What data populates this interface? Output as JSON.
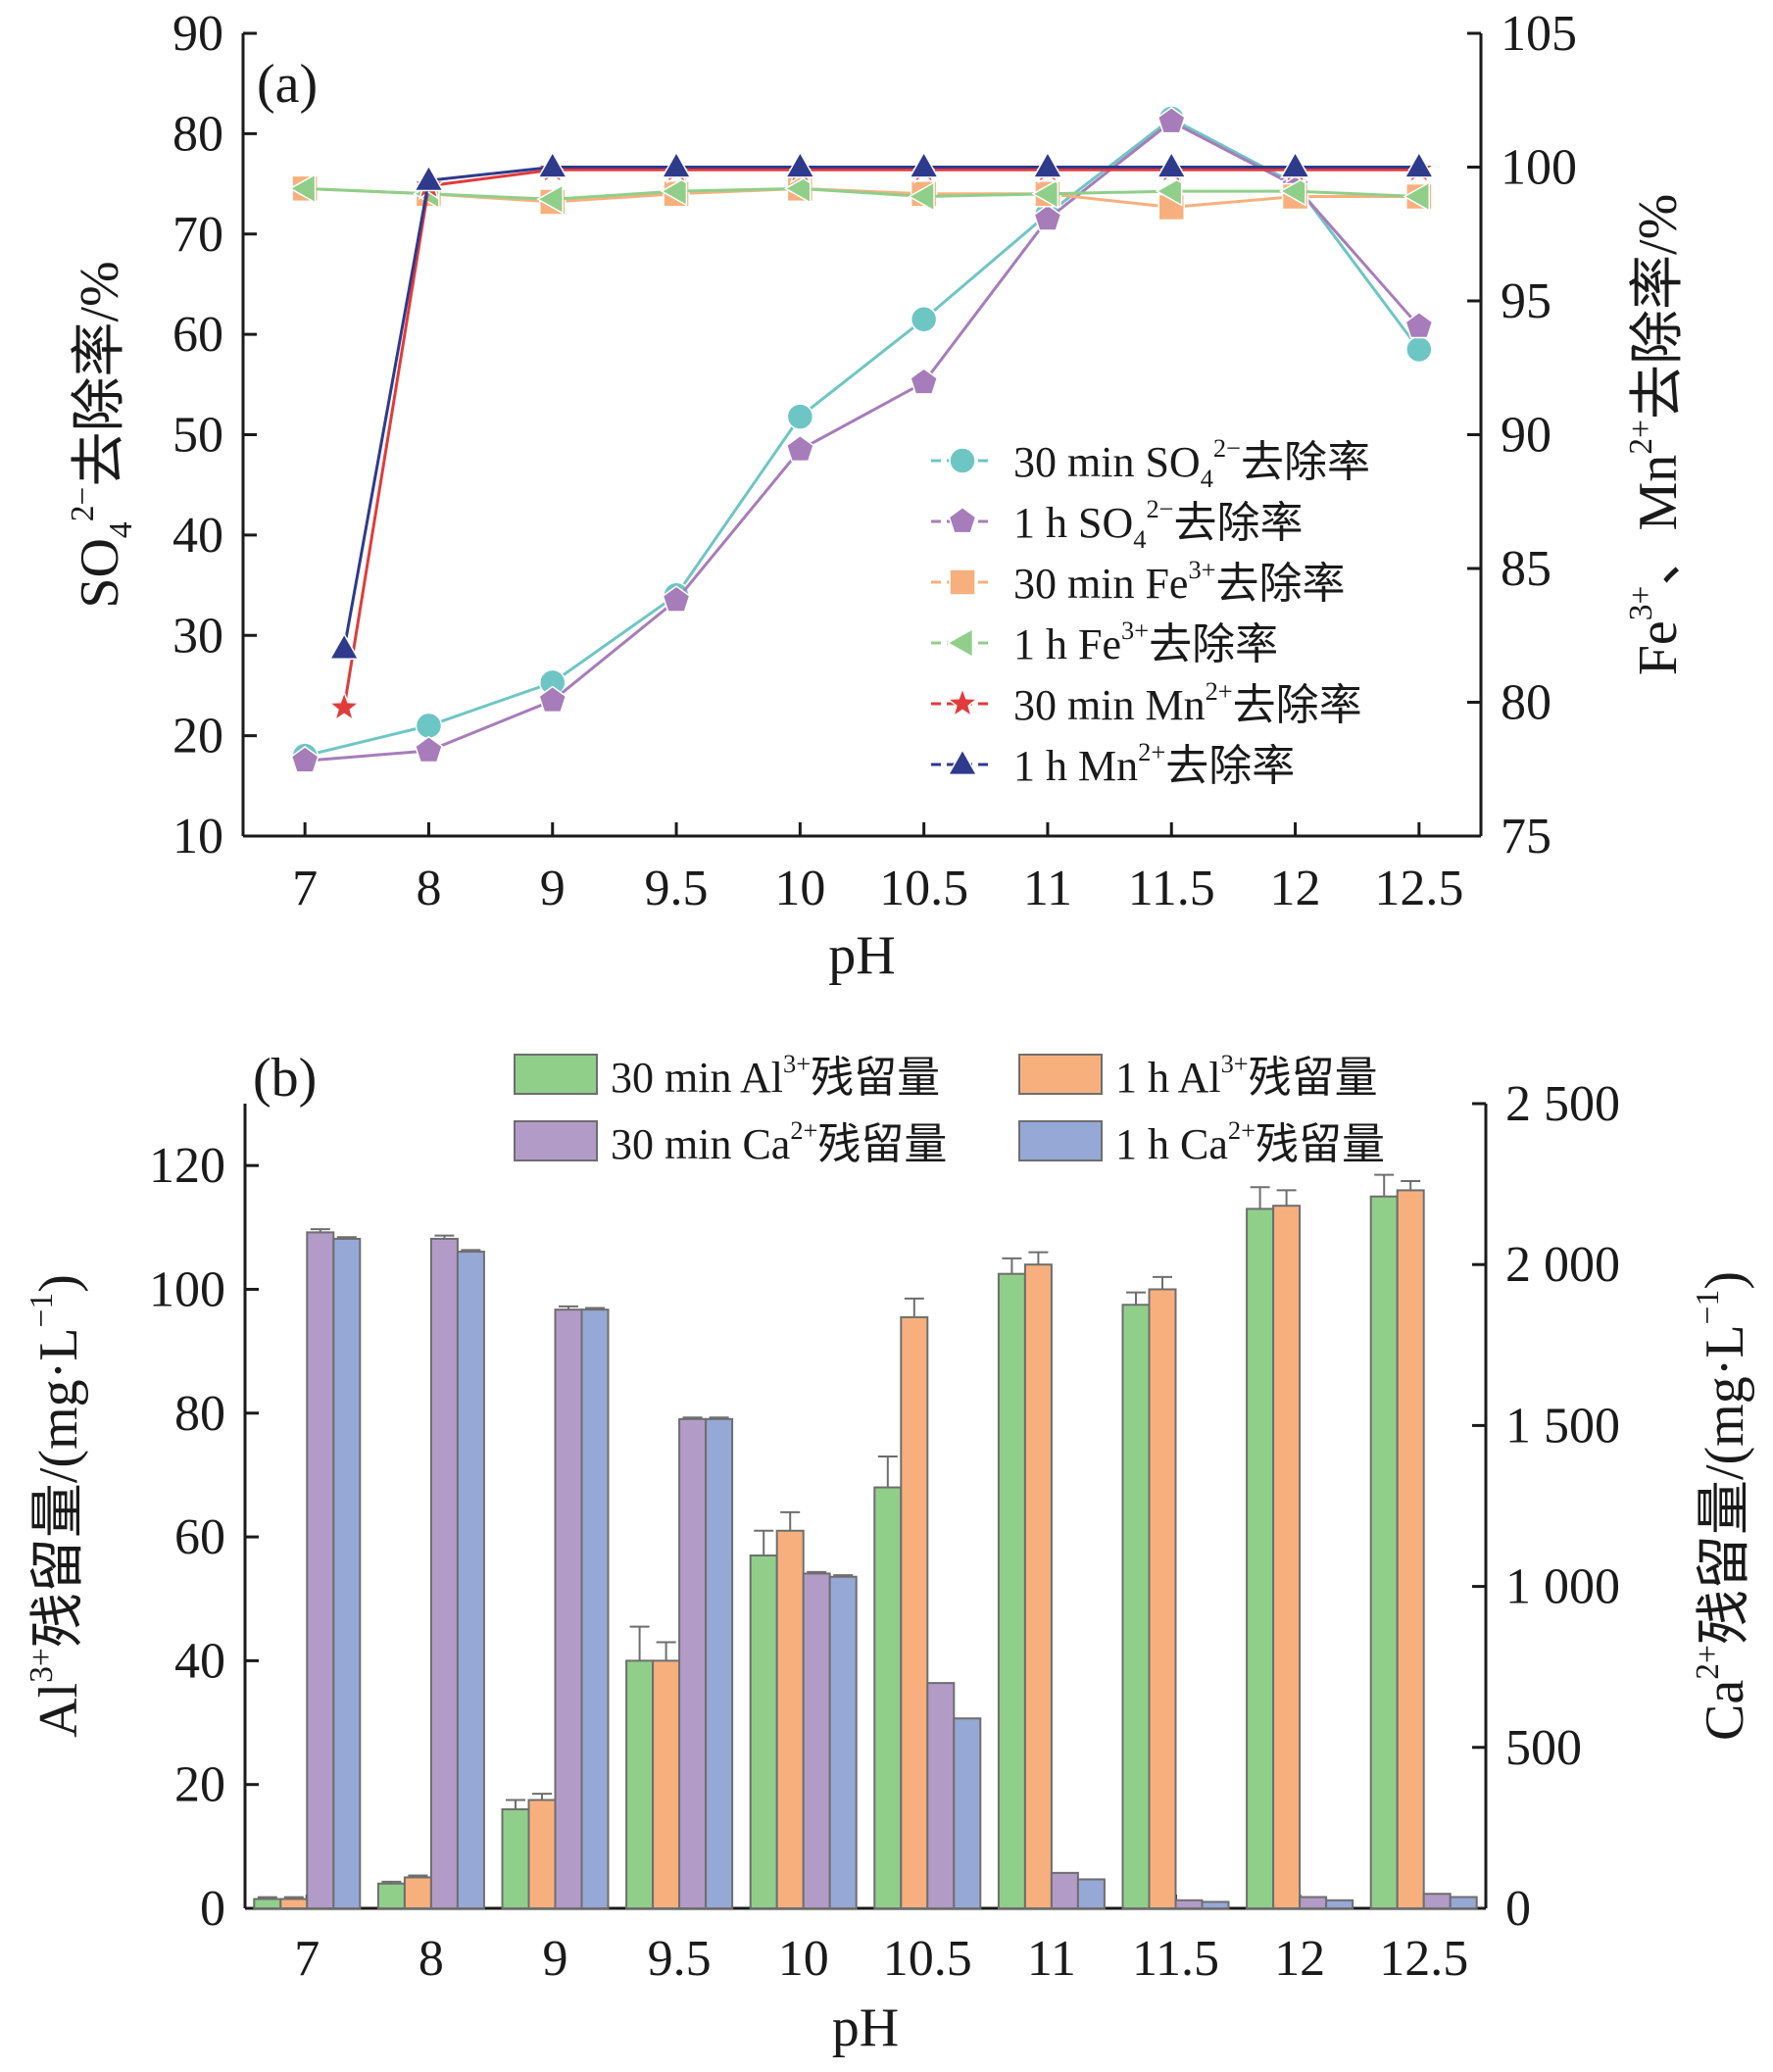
{
  "chart_data": [
    {
      "panel": "(a)",
      "type": "line",
      "xlabel": "pH",
      "categories": [
        "7",
        "8",
        "9",
        "9.5",
        "10",
        "10.5",
        "11",
        "11.5",
        "12",
        "12.5"
      ],
      "ylabel_left": [
        "SO",
        "4",
        "2−",
        "去除率/%"
      ],
      "ylabel_right": [
        "Fe",
        "3+",
        "、Mn",
        "2+",
        "去除率/%"
      ],
      "ylim_left": [
        10,
        90
      ],
      "yticks_left": [
        10,
        20,
        30,
        40,
        50,
        60,
        70,
        80,
        90
      ],
      "ylim_right": [
        75,
        105
      ],
      "yticks_right": [
        75,
        80,
        85,
        90,
        95,
        100,
        105
      ],
      "legend_position": "lower-right",
      "series": [
        {
          "name": [
            "30 min SO",
            "4",
            "2−",
            "去除率"
          ],
          "axis": "left",
          "marker": "circle",
          "color": "#6ec6c4",
          "values": [
            18,
            21,
            25.3,
            34,
            51.8,
            61.5,
            72,
            81.5,
            75,
            58.5
          ]
        },
        {
          "name": [
            "1 h SO",
            "4",
            "2−",
            "去除率"
          ],
          "axis": "left",
          "marker": "pentagon",
          "color": "#a77cba",
          "values": [
            17.5,
            18.5,
            23.5,
            33.5,
            48.5,
            55.2,
            71.5,
            81.2,
            74.8,
            60.8
          ]
        },
        {
          "name": [
            "30 min Fe",
            "",
            "3+",
            "去除率"
          ],
          "axis": "right",
          "marker": "square",
          "color": "#f7b07d",
          "values": [
            99.2,
            99,
            98.7,
            99,
            99.2,
            99,
            99,
            98.5,
            98.9,
            98.9
          ]
        },
        {
          "name": [
            "1 h Fe",
            "",
            "3+",
            "去除率"
          ],
          "axis": "right",
          "marker": "triangle-left",
          "color": "#8fcf8a",
          "values": [
            99.2,
            99,
            98.8,
            99.1,
            99.2,
            98.9,
            99,
            99.1,
            99.1,
            98.9
          ]
        },
        {
          "name": [
            "30 min Mn",
            "",
            "2+",
            "去除率"
          ],
          "axis": "right",
          "marker": "star",
          "color": "#e23b3b",
          "values": [
            79.8,
            99.3,
            99.9,
            99.9,
            99.9,
            99.9,
            99.9,
            99.9,
            99.9,
            99.9
          ]
        },
        {
          "name": [
            "1 h Mn",
            "",
            "2+",
            "去除率"
          ],
          "axis": "right",
          "marker": "triangle-up",
          "color": "#2e3a8c",
          "values": [
            82,
            99.5,
            100,
            100,
            100,
            100,
            100,
            100,
            100,
            100
          ]
        }
      ]
    },
    {
      "panel": "(b)",
      "type": "bar",
      "xlabel": "pH",
      "categories": [
        "7",
        "8",
        "9",
        "9.5",
        "10",
        "10.5",
        "11",
        "11.5",
        "12",
        "12.5"
      ],
      "ylabel_left": [
        "Al",
        "3+",
        "残留量/(mg·L",
        "−1",
        ")"
      ],
      "ylabel_right": [
        "Ca",
        "2+",
        "残留量/(mg·L",
        "−1",
        ")"
      ],
      "ylim_left": [
        0,
        130
      ],
      "yticks_left": [
        0,
        20,
        40,
        60,
        80,
        100,
        120
      ],
      "ylim_right": [
        0,
        2500
      ],
      "yticks_right": [
        0,
        500,
        1000,
        1500,
        2000,
        2500
      ],
      "yticks_right_labels": [
        "0",
        "500",
        "1 000",
        "1 500",
        "2 000",
        "2 500"
      ],
      "legend_position": "top-right",
      "series": [
        {
          "name": [
            "30 min Al",
            "3+",
            "残留量"
          ],
          "axis": "left",
          "color": "#8fcf8a",
          "values": [
            1.5,
            4,
            16,
            40,
            57,
            68,
            102.5,
            97.5,
            113,
            115
          ],
          "errors": [
            0.3,
            0.3,
            1.5,
            5.5,
            4,
            5,
            2.5,
            2,
            3.5,
            3.5
          ]
        },
        {
          "name": [
            "1 h Al",
            "3+",
            "残留量"
          ],
          "axis": "left",
          "color": "#f7b07d",
          "values": [
            1.5,
            5,
            17.5,
            40,
            61,
            95.5,
            104,
            100,
            113.5,
            116
          ],
          "errors": [
            0.3,
            0.3,
            1,
            3,
            3,
            3,
            2,
            2,
            2.5,
            1.5
          ]
        },
        {
          "name": [
            "30 min Ca",
            "2+",
            "残留量"
          ],
          "axis": "right",
          "color": "#b39bc8",
          "values": [
            2100,
            2080,
            1860,
            1520,
            1040,
            700,
            110,
            25,
            35,
            45
          ],
          "errors": [
            10,
            10,
            10,
            5,
            5,
            0,
            0,
            0,
            0,
            0
          ]
        },
        {
          "name": [
            "1 h Ca",
            "2+",
            "残留量"
          ],
          "axis": "right",
          "color": "#95a8d6",
          "values": [
            2080,
            2040,
            1860,
            1520,
            1030,
            590,
            90,
            20,
            25,
            35
          ],
          "errors": [
            5,
            5,
            5,
            5,
            5,
            0,
            0,
            0,
            0,
            0
          ]
        }
      ]
    }
  ]
}
